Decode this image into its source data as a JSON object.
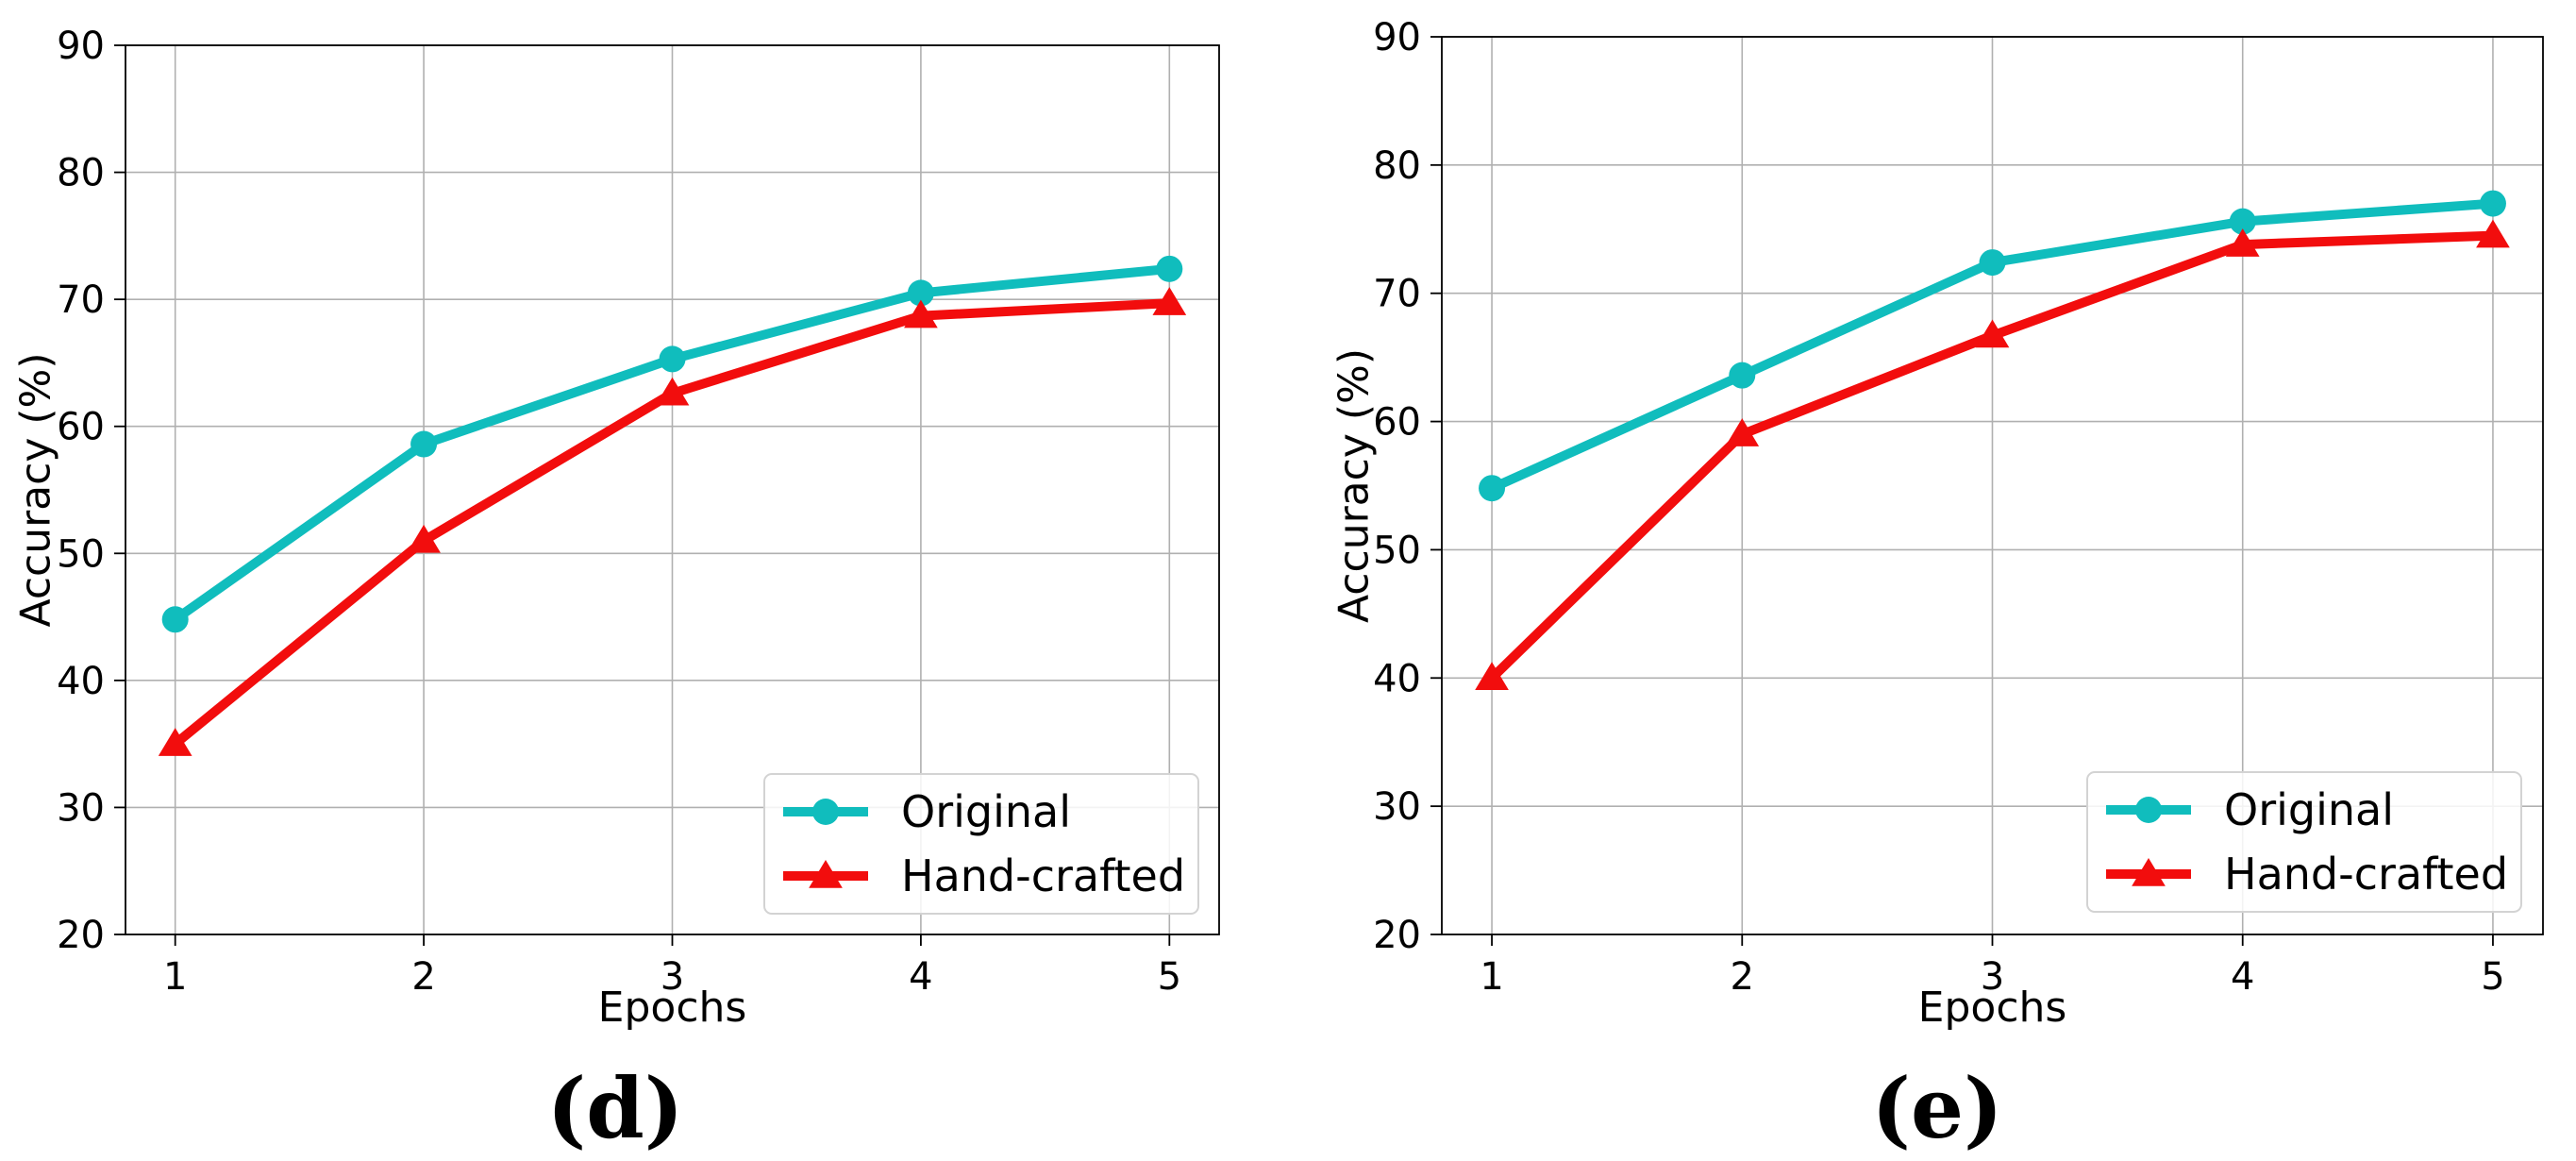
{
  "chart_data": [
    {
      "type": "line",
      "caption": "(d)",
      "xlabel": "Epochs",
      "ylabel": "Accuracy (%)",
      "x": [
        1,
        2,
        3,
        4,
        5
      ],
      "xticks": [
        "1",
        "2",
        "3",
        "4",
        "5"
      ],
      "xlim": [
        0.8,
        5.2
      ],
      "ylim": [
        20,
        90
      ],
      "yticks": [
        "20",
        "30",
        "40",
        "50",
        "60",
        "70",
        "80",
        "90"
      ],
      "grid": true,
      "legend_position": "lower-right",
      "series": [
        {
          "name": "Original",
          "color": "#10bdbd",
          "marker": "circle",
          "values": [
            44.8,
            58.6,
            65.3,
            70.5,
            72.4
          ]
        },
        {
          "name": "Hand-crafted",
          "color": "#f20d0d",
          "marker": "triangle",
          "values": [
            35.0,
            51.0,
            62.6,
            68.7,
            69.7
          ]
        }
      ]
    },
    {
      "type": "line",
      "caption": "(e)",
      "xlabel": "Epochs",
      "ylabel": "Accuracy (%)",
      "x": [
        1,
        2,
        3,
        4,
        5
      ],
      "xticks": [
        "1",
        "2",
        "3",
        "4",
        "5"
      ],
      "xlim": [
        0.8,
        5.2
      ],
      "ylim": [
        20,
        90
      ],
      "yticks": [
        "20",
        "30",
        "40",
        "50",
        "60",
        "70",
        "80",
        "90"
      ],
      "grid": true,
      "legend_position": "lower-right",
      "series": [
        {
          "name": "Original",
          "color": "#10bdbd",
          "marker": "circle",
          "values": [
            54.8,
            63.6,
            72.4,
            75.6,
            77.0
          ]
        },
        {
          "name": "Hand-crafted",
          "color": "#f20d0d",
          "marker": "triangle",
          "values": [
            40.0,
            59.0,
            66.7,
            73.8,
            74.5
          ]
        }
      ]
    }
  ]
}
